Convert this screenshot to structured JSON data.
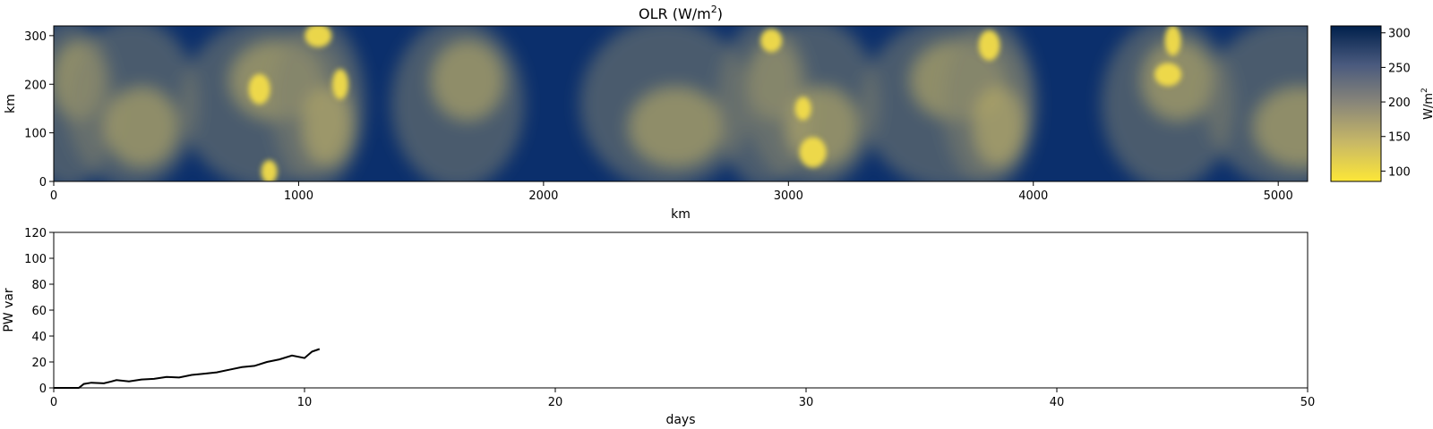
{
  "chart_data": [
    {
      "type": "heatmap",
      "title": "OLR (W/m",
      "title_sup": "2",
      "title_end": ")",
      "xlabel": "km",
      "ylabel": "km",
      "xlim": [
        0,
        5120
      ],
      "ylim": [
        0,
        320
      ],
      "xticks": [
        0,
        1000,
        2000,
        3000,
        4000,
        5000
      ],
      "yticks": [
        0,
        100,
        200,
        300
      ],
      "colormap": "cividis (reversed): 310 → dark navy #00204c, 90 → yellow #fde737",
      "colorbar": {
        "label": "W/m",
        "label_sup": "2",
        "range": [
          85,
          310
        ],
        "ticks": [
          100,
          150,
          200,
          250,
          300
        ]
      },
      "features": {
        "clusters_km_x": [
          60,
          320,
          870,
          1080,
          1650,
          2500,
          2900,
          3100,
          3650,
          3820,
          4550,
          5050
        ],
        "blob_centers_km": [
          [
            880,
            20
          ],
          [
            840,
            190
          ],
          [
            1080,
            300
          ],
          [
            1170,
            200
          ],
          [
            2930,
            290
          ],
          [
            3100,
            60
          ],
          [
            3060,
            150
          ],
          [
            3820,
            280
          ],
          [
            4550,
            220
          ],
          [
            4570,
            290
          ]
        ]
      }
    },
    {
      "type": "line",
      "xlabel": "days",
      "ylabel": "PW var",
      "xlim": [
        0,
        50
      ],
      "ylim": [
        0,
        120
      ],
      "xticks": [
        0,
        10,
        20,
        30,
        40,
        50
      ],
      "yticks": [
        0,
        20,
        40,
        60,
        80,
        100,
        120
      ],
      "series": [
        {
          "color": "#000000",
          "x": [
            0,
            0.5,
            1.0,
            1.2,
            1.5,
            2.0,
            2.3,
            2.5,
            3.0,
            3.5,
            4.0,
            4.5,
            5.0,
            5.5,
            6.0,
            6.5,
            7.0,
            7.5,
            8.0,
            8.5,
            9.0,
            9.5,
            10.0,
            10.3,
            10.6
          ],
          "values": [
            0,
            0,
            0,
            3,
            4,
            3.5,
            5,
            6,
            5,
            6.5,
            7,
            8.5,
            8,
            10,
            11,
            12,
            14,
            16,
            17,
            20,
            22,
            25,
            23,
            28,
            30
          ]
        }
      ]
    }
  ]
}
